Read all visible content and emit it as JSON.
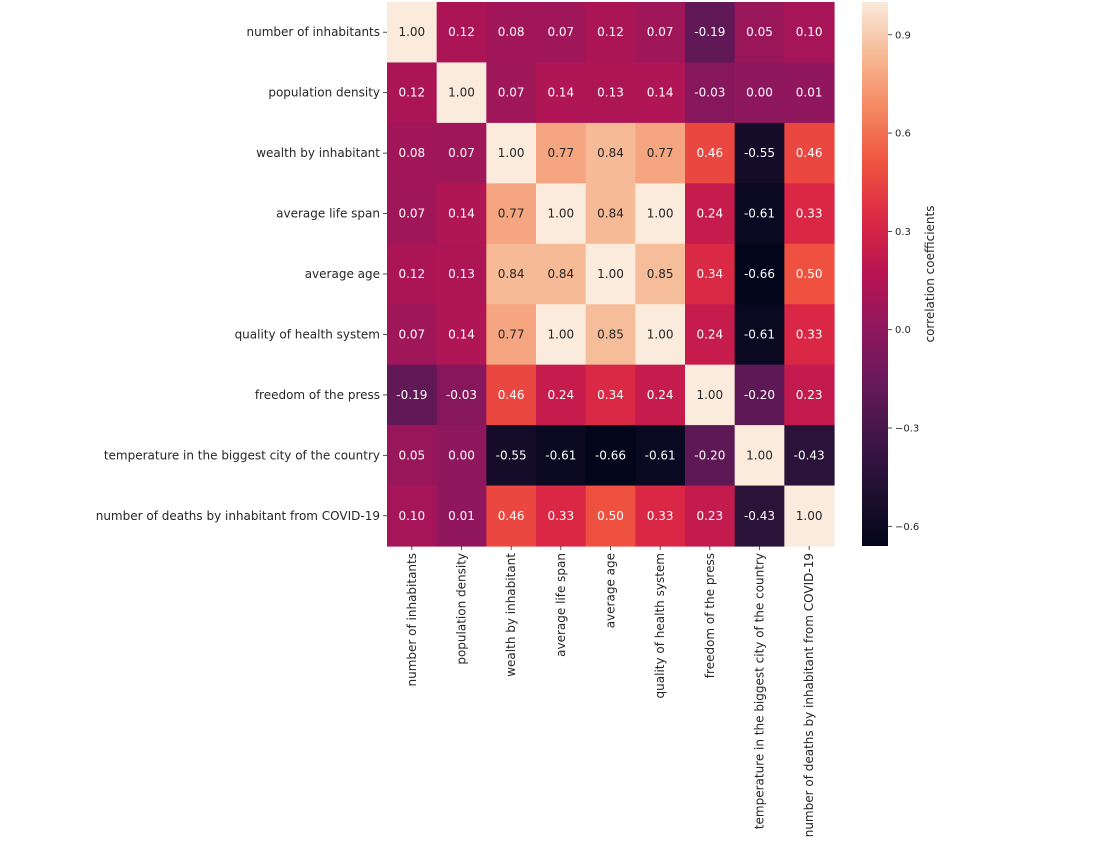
{
  "chart_data": {
    "type": "heatmap",
    "rows": [
      "number of inhabitants",
      "population density",
      "wealth by inhabitant",
      "average life span",
      "average age",
      "quality of health system",
      "freedom of the press",
      "temperature in the biggest city of the country",
      "number of deaths by inhabitant from COVID-19"
    ],
    "columns": [
      "number of inhabitants",
      "population density",
      "wealth by inhabitant",
      "average life span",
      "average age",
      "quality of health system",
      "freedom of the press",
      "temperature in the biggest city of the country",
      "number of deaths by inhabitant from COVID-19"
    ],
    "values": [
      [
        1.0,
        0.12,
        0.08,
        0.07,
        0.12,
        0.07,
        -0.19,
        0.05,
        0.1
      ],
      [
        0.12,
        1.0,
        0.07,
        0.14,
        0.13,
        0.14,
        -0.03,
        0.0,
        0.01
      ],
      [
        0.08,
        0.07,
        1.0,
        0.77,
        0.84,
        0.77,
        0.46,
        -0.55,
        0.46
      ],
      [
        0.07,
        0.14,
        0.77,
        1.0,
        0.84,
        1.0,
        0.24,
        -0.61,
        0.33
      ],
      [
        0.12,
        0.13,
        0.84,
        0.84,
        1.0,
        0.85,
        0.34,
        -0.66,
        0.5
      ],
      [
        0.07,
        0.14,
        0.77,
        1.0,
        0.85,
        1.0,
        0.24,
        -0.61,
        0.33
      ],
      [
        -0.19,
        -0.03,
        0.46,
        0.24,
        0.34,
        0.24,
        1.0,
        -0.2,
        0.23
      ],
      [
        0.05,
        0.0,
        -0.55,
        -0.61,
        -0.66,
        -0.61,
        -0.2,
        1.0,
        -0.43
      ],
      [
        0.1,
        0.01,
        0.46,
        0.33,
        0.5,
        0.33,
        0.23,
        -0.43,
        1.0
      ]
    ],
    "value_format": "0.00",
    "colormap": "rocket",
    "color_range": [
      -0.66,
      1.0
    ],
    "colorbar": {
      "label": "correlation coefficients",
      "ticks": [
        -0.6,
        -0.3,
        0.0,
        0.3,
        0.6,
        0.9
      ],
      "tick_labels": [
        "−0.6",
        "−0.3",
        "0.0",
        "0.3",
        "0.6",
        "0.9"
      ],
      "placement": "right"
    },
    "x_tick_rotation": "vertical",
    "grid": false
  }
}
